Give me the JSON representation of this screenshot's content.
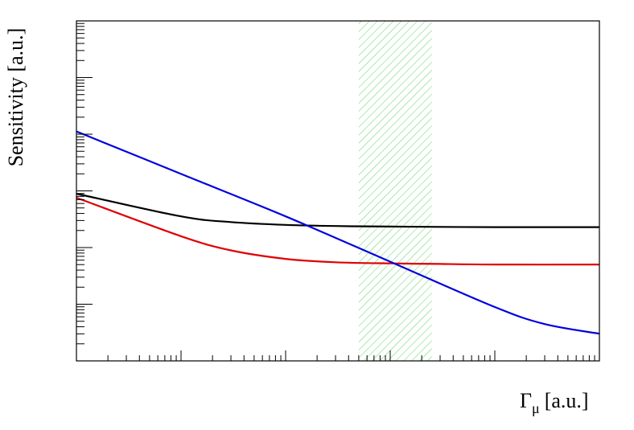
{
  "chart_data": {
    "type": "line",
    "title": "",
    "xlabel": "Γ",
    "xlabel_sub": "μ",
    "xlabel_unit": "[a.u.]",
    "ylabel": "Sensitivity [a.u.]",
    "x_scale": "log",
    "y_scale": "log",
    "xlim": [
      1,
      100000
    ],
    "ylim_decades": [
      0,
      6
    ],
    "grid": false,
    "legend": "none",
    "band": {
      "x_from": 500,
      "x_to": 2500,
      "color": "#5fd35f",
      "pattern": "hatched"
    },
    "series": [
      {
        "color": "#000000",
        "x": [
          1,
          10,
          30,
          100,
          300,
          1000,
          10000,
          100000
        ],
        "y": [
          2.95,
          2.55,
          2.45,
          2.4,
          2.38,
          2.37,
          2.36,
          2.36
        ]
      },
      {
        "color": "#e00000",
        "x": [
          1,
          10,
          30,
          100,
          300,
          1000,
          3000,
          10000,
          100000
        ],
        "y": [
          2.88,
          2.2,
          1.95,
          1.8,
          1.74,
          1.72,
          1.71,
          1.7,
          1.7
        ]
      },
      {
        "color": "#0000e0",
        "x": [
          1,
          10,
          100,
          1000,
          10000,
          30000,
          100000
        ],
        "y": [
          4.05,
          3.3,
          2.55,
          1.75,
          0.95,
          0.65,
          0.48
        ]
      }
    ]
  }
}
